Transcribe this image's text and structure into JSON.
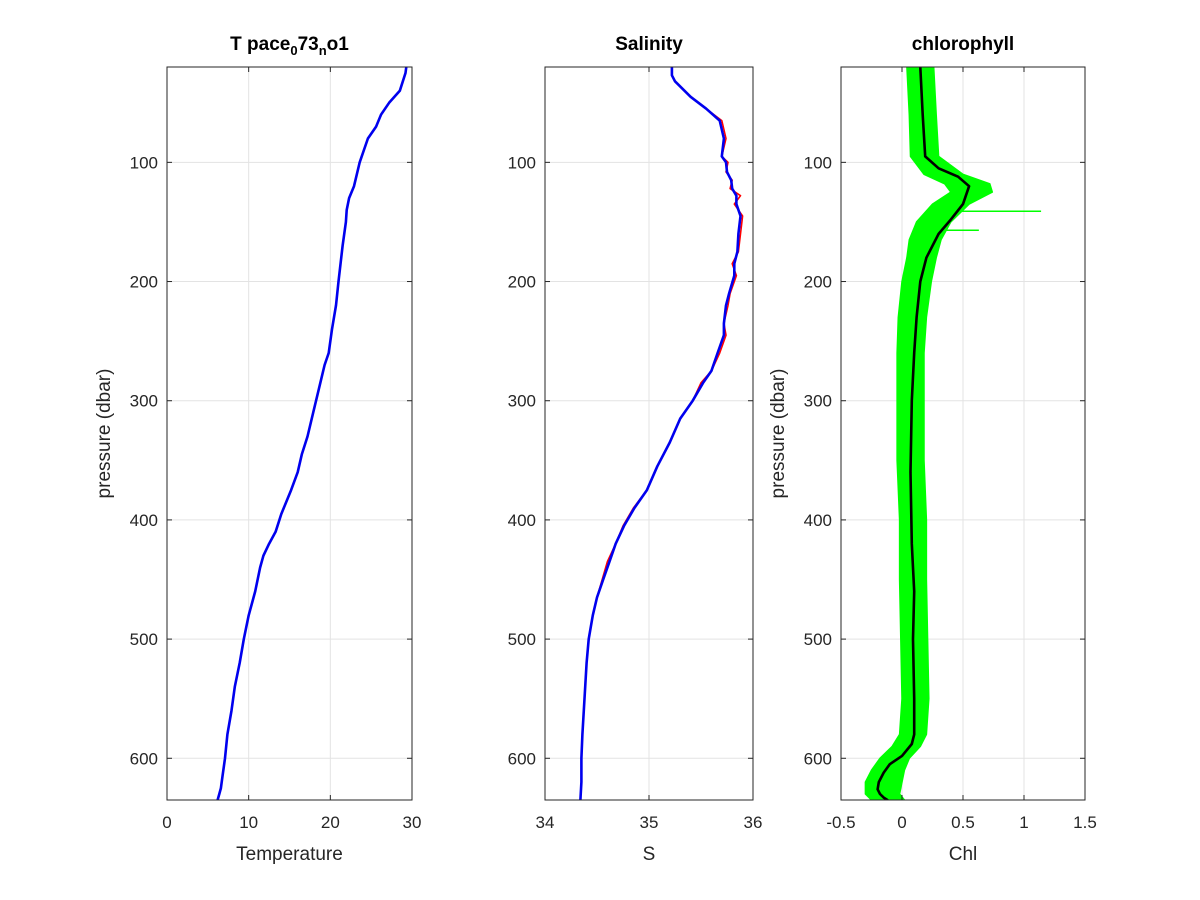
{
  "figure": {
    "background": "#ffffff"
  },
  "chart_data": [
    {
      "type": "line",
      "title_parts": [
        {
          "text": "T pace",
          "sub": false
        },
        {
          "text": "0",
          "sub": true
        },
        {
          "text": "73",
          "sub": false
        },
        {
          "text": "n",
          "sub": true
        },
        {
          "text": "o1",
          "sub": false
        }
      ],
      "xlabel": "Temperature",
      "ylabel": "pressure (dbar)",
      "xlim": [
        0,
        30
      ],
      "ylim": [
        20,
        635
      ],
      "y_reversed": true,
      "xticks": [
        0,
        10,
        20,
        30
      ],
      "yticks": [
        100,
        200,
        300,
        400,
        500,
        600
      ],
      "grid": true,
      "series": [
        {
          "color": "#0000ee",
          "x": [
            29.3,
            29.2,
            28.5,
            27.2,
            26.2,
            25.6,
            24.6,
            23.6,
            22.9,
            22.3,
            22.0,
            21.9,
            21.5,
            21.0,
            20.7,
            20.2,
            19.8,
            19.3,
            18.6,
            17.9,
            17.2,
            16.5,
            16.0,
            15.2,
            14.0,
            13.3,
            12.5,
            11.8,
            11.4,
            10.8,
            10.0,
            9.4,
            8.9,
            8.3,
            7.9,
            7.4,
            7.1,
            6.8,
            6.6,
            6.4,
            6.2
          ],
          "y": [
            20,
            25,
            40,
            50,
            60,
            70,
            80,
            100,
            120,
            130,
            140,
            150,
            170,
            200,
            220,
            240,
            260,
            270,
            290,
            310,
            330,
            345,
            360,
            375,
            395,
            410,
            420,
            430,
            440,
            460,
            480,
            500,
            520,
            540,
            560,
            580,
            600,
            615,
            625,
            630,
            635
          ]
        }
      ]
    },
    {
      "type": "line",
      "title": "Salinity",
      "xlabel": "S",
      "xlim": [
        34,
        36
      ],
      "ylim": [
        20,
        635
      ],
      "y_reversed": true,
      "xticks": [
        34,
        35,
        36
      ],
      "yticks": [
        100,
        200,
        300,
        400,
        500,
        600
      ],
      "grid": true,
      "series": [
        {
          "color": "#ff0000",
          "x": [
            35.22,
            35.22,
            35.25,
            35.4,
            35.55,
            35.7,
            35.74,
            35.7,
            35.76,
            35.74,
            35.8,
            35.78,
            35.88,
            35.82,
            35.9,
            35.88,
            35.86,
            35.8,
            35.84,
            35.78,
            35.76,
            35.72,
            35.74,
            35.68,
            35.6,
            35.5,
            35.42,
            35.3,
            35.2,
            35.08,
            34.98,
            34.85,
            34.75,
            34.68,
            34.6,
            34.55,
            34.5,
            34.46,
            34.42,
            34.4,
            34.38,
            34.36,
            34.35,
            34.35,
            34.34
          ],
          "y": [
            20,
            27,
            32,
            45,
            55,
            65,
            80,
            95,
            100,
            108,
            115,
            122,
            128,
            135,
            145,
            160,
            175,
            185,
            195,
            210,
            220,
            235,
            245,
            260,
            275,
            285,
            300,
            315,
            335,
            355,
            375,
            390,
            405,
            420,
            435,
            450,
            465,
            480,
            500,
            520,
            550,
            580,
            600,
            620,
            635
          ]
        },
        {
          "color": "#0000ee",
          "x": [
            35.22,
            35.22,
            35.25,
            35.4,
            35.55,
            35.68,
            35.72,
            35.7,
            35.74,
            35.75,
            35.79,
            35.8,
            35.84,
            35.84,
            35.88,
            35.86,
            35.85,
            35.82,
            35.82,
            35.77,
            35.74,
            35.72,
            35.72,
            35.66,
            35.6,
            35.52,
            35.42,
            35.3,
            35.2,
            35.08,
            34.98,
            34.86,
            34.76,
            34.68,
            34.62,
            34.56,
            34.5,
            34.46,
            34.42,
            34.4,
            34.38,
            34.36,
            34.35,
            34.35,
            34.34
          ],
          "y": [
            20,
            27,
            32,
            45,
            55,
            65,
            80,
            95,
            100,
            108,
            115,
            122,
            128,
            135,
            145,
            160,
            175,
            185,
            195,
            210,
            220,
            235,
            245,
            260,
            275,
            285,
            300,
            315,
            335,
            355,
            375,
            390,
            405,
            420,
            435,
            450,
            465,
            480,
            500,
            520,
            550,
            580,
            600,
            620,
            635
          ]
        }
      ]
    },
    {
      "type": "line",
      "title": "chlorophyll",
      "xlabel": "Chl",
      "ylabel": "pressure (dbar)",
      "xlim": [
        -0.5,
        1.5
      ],
      "ylim": [
        20,
        635
      ],
      "y_reversed": true,
      "xticks": [
        -0.5,
        0,
        0.5,
        1,
        1.5
      ],
      "yticks": [
        100,
        200,
        300,
        400,
        500,
        600
      ],
      "grid": true,
      "band": {
        "color": "#00ff00",
        "y": [
          20,
          60,
          95,
          110,
          118,
          125,
          135,
          150,
          165,
          180,
          200,
          230,
          260,
          300,
          350,
          400,
          450,
          500,
          550,
          580,
          590,
          600,
          610,
          620,
          630,
          635
        ],
        "lo": [
          0.04,
          0.06,
          0.07,
          0.18,
          0.35,
          0.4,
          0.25,
          0.12,
          0.06,
          0.04,
          0.0,
          -0.03,
          -0.04,
          -0.04,
          -0.04,
          -0.02,
          -0.02,
          -0.01,
          0.0,
          -0.02,
          -0.08,
          -0.18,
          -0.25,
          -0.3,
          -0.3,
          -0.25
        ],
        "hi": [
          0.26,
          0.28,
          0.3,
          0.5,
          0.72,
          0.74,
          0.55,
          0.4,
          0.32,
          0.28,
          0.24,
          0.2,
          0.18,
          0.18,
          0.18,
          0.2,
          0.2,
          0.21,
          0.22,
          0.2,
          0.15,
          0.06,
          0.02,
          0.0,
          -0.02,
          0.02
        ],
        "spikes": [
          {
            "y": 141,
            "x": 1.14
          },
          {
            "y": 157,
            "x": 0.63
          }
        ]
      },
      "series": [
        {
          "color": "#000000",
          "x": [
            0.15,
            0.17,
            0.19,
            0.3,
            0.46,
            0.55,
            0.5,
            0.4,
            0.3,
            0.2,
            0.15,
            0.12,
            0.1,
            0.08,
            0.07,
            0.08,
            0.1,
            0.09,
            0.1,
            0.1,
            0.08,
            0.0,
            -0.1,
            -0.15,
            -0.19,
            -0.2,
            -0.18,
            -0.15,
            -0.12
          ],
          "y": [
            20,
            60,
            95,
            105,
            112,
            120,
            135,
            148,
            160,
            180,
            200,
            230,
            260,
            300,
            360,
            420,
            460,
            500,
            550,
            580,
            588,
            598,
            605,
            612,
            620,
            626,
            630,
            633,
            635
          ]
        }
      ]
    }
  ]
}
